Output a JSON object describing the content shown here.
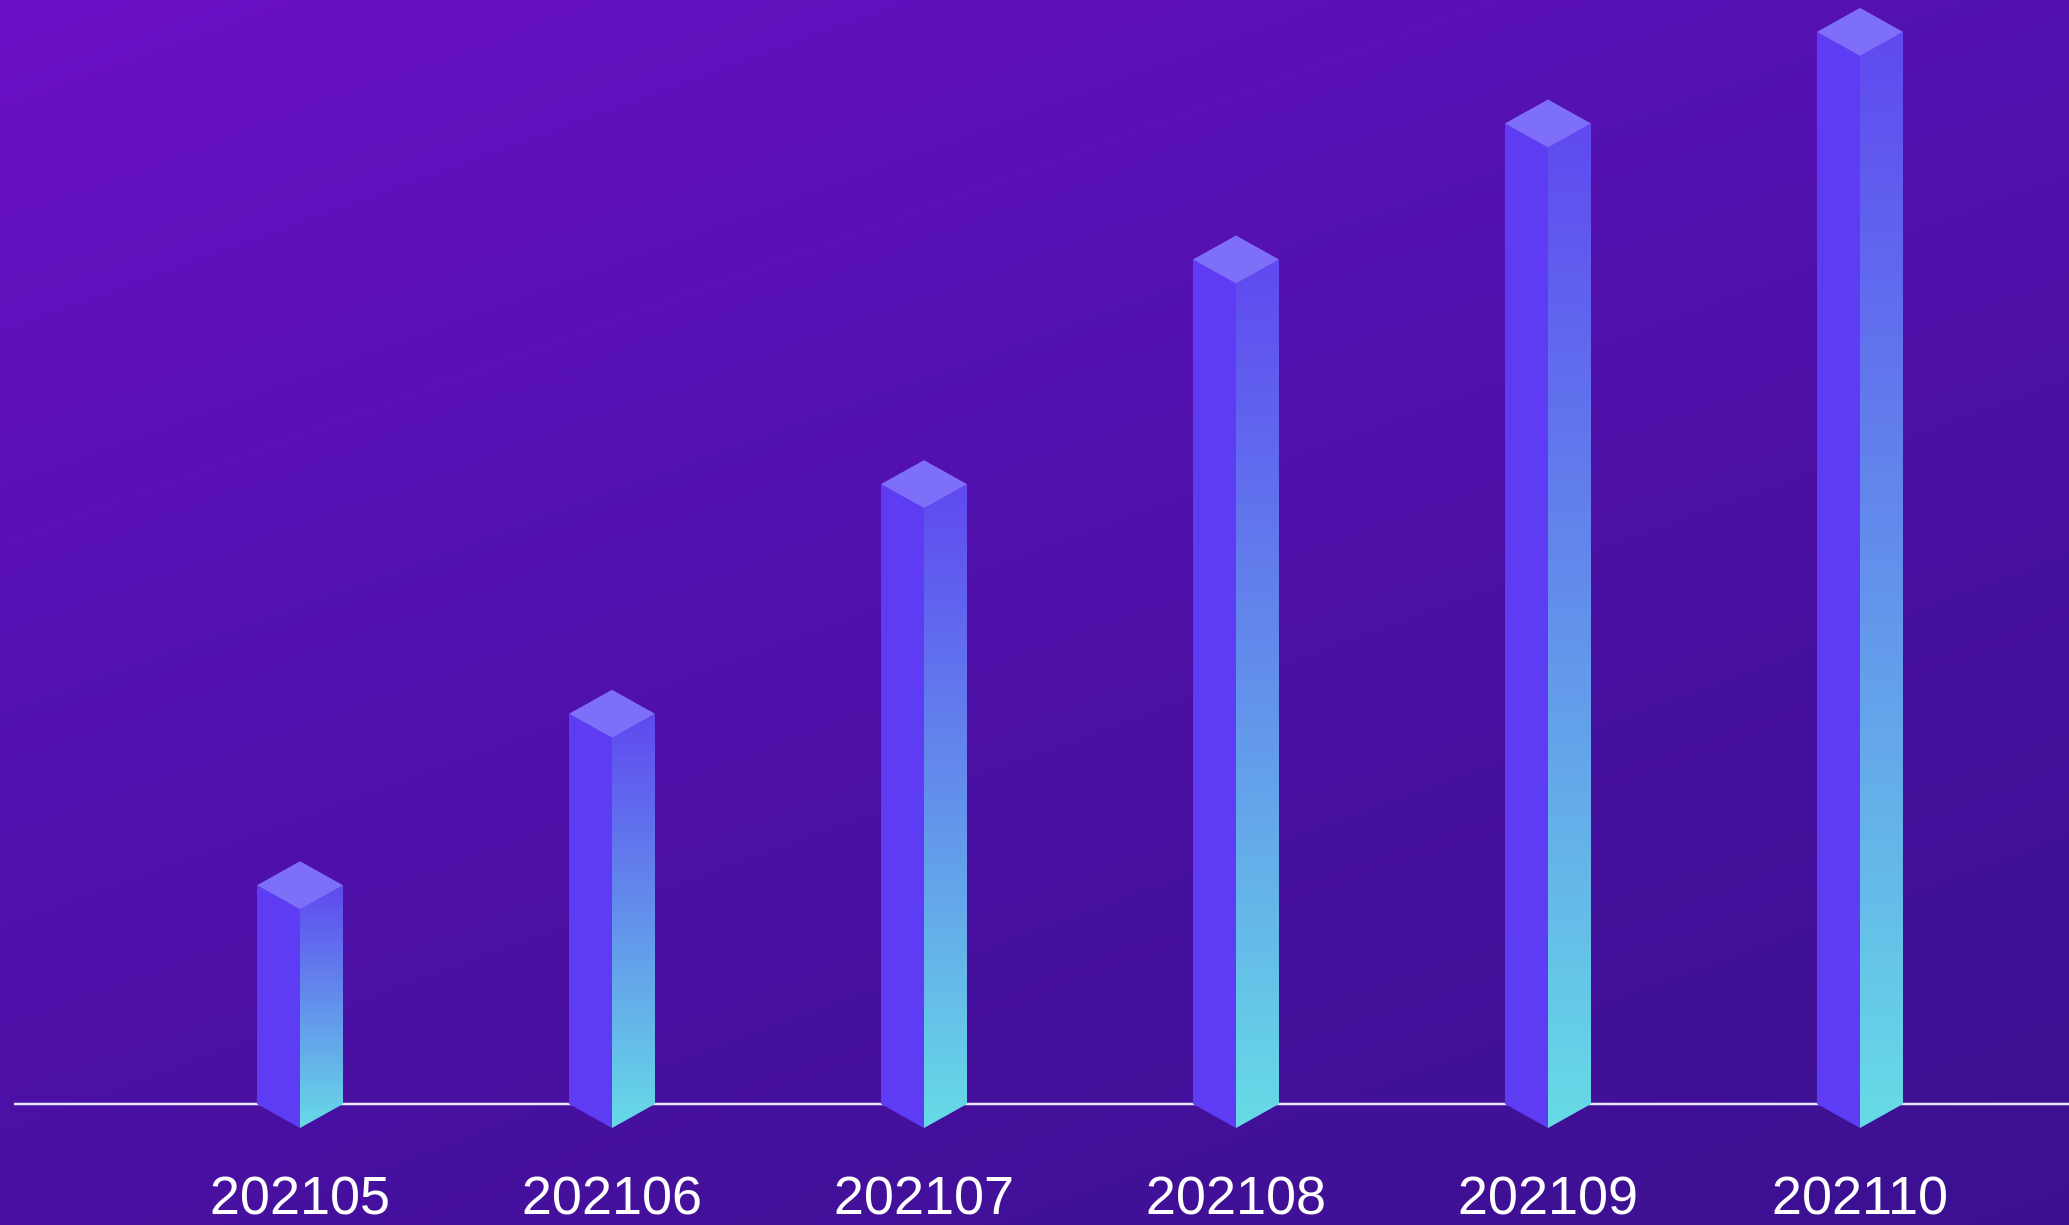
{
  "chart_data": {
    "type": "bar",
    "style": "3d-isometric-columns",
    "categories": [
      "202105",
      "202106",
      "202107",
      "202108",
      "202109",
      "202110"
    ],
    "values": [
      222,
      396,
      629,
      857,
      995,
      1088
    ],
    "ylim": [
      0,
      1100
    ],
    "grid": false,
    "legend": "none",
    "x_axis_line": true,
    "colors": {
      "bg_top": "#6a0fc4",
      "bg_bottom": "#3a1090",
      "bar_left": "#5e3cf4",
      "bar_right_top": "#5f48f0",
      "bar_right_bottom": "#66dbe6",
      "bar_cap": "#7d6ff8",
      "axis": "#e9e6ff",
      "label": "#ffffff"
    }
  }
}
